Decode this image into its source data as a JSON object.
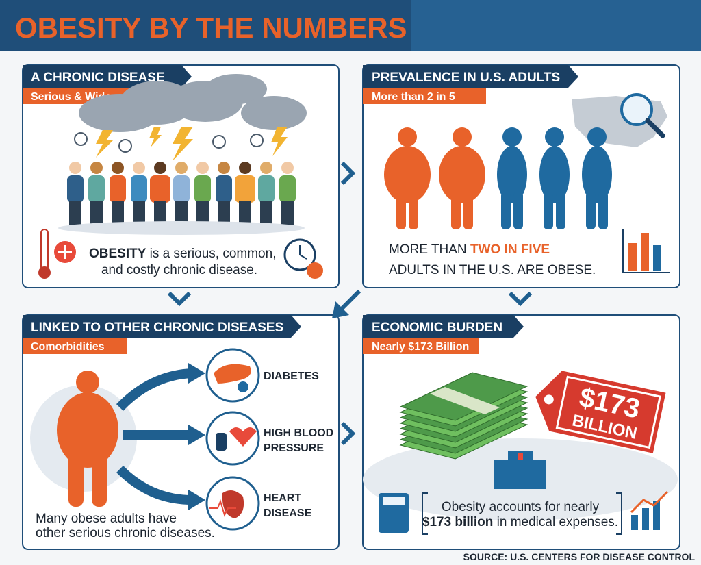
{
  "header": {
    "title": "OBESITY BY THE NUMBERS"
  },
  "panels": [
    {
      "heading": "A CHRONIC DISEASE",
      "subheading": "Serious & Widespread",
      "text": {
        "bold": "OBESITY",
        "rest_line1": " is a serious, common,",
        "line2": "and costly chronic disease."
      }
    },
    {
      "heading": "PREVALENCE IN U.S. ADULTS",
      "subheading": "More than 2 in 5",
      "text": {
        "line1_start": "MORE THAN ",
        "highlight": "TWO IN FIVE",
        "line2": "ADULTS IN THE U.S. ARE OBESE."
      }
    },
    {
      "heading": "LINKED TO OTHER CHRONIC DISEASES",
      "subheading": "Comorbidities",
      "items": [
        [
          "DIABETES"
        ],
        [
          "HIGH BLOOD",
          "PRESSURE"
        ],
        [
          "HEART",
          "DISEASE"
        ]
      ],
      "caption": [
        "Many obese adults have",
        "other serious chronic diseases."
      ]
    },
    {
      "heading": "ECONOMIC BURDEN",
      "subheading": "Nearly $173 Billion",
      "tag": [
        "$173",
        "BILLION"
      ],
      "text": {
        "line1": "Obesity accounts for nearly",
        "bold": "$173 billion",
        "rest": " in medical expenses."
      }
    }
  ],
  "source": "SOURCE: U.S. CENTERS FOR DISEASE CONTROL"
}
